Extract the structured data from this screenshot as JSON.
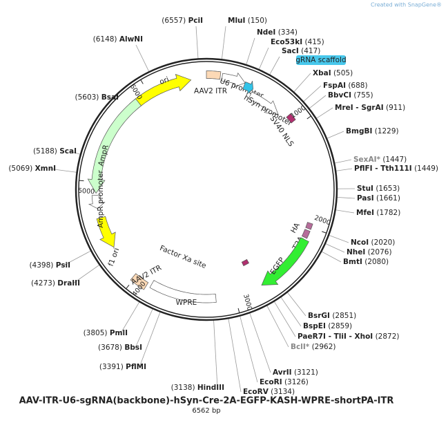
{
  "header": {
    "credit": "Created with SnapGene®"
  },
  "map": {
    "title": "AAV-ITR-U6-sgRNA(backbone)-hSyn-Cre-2A-EGFP-KASH-WPRE-shortPA-ITR",
    "length": "6562 bp",
    "ticks": [
      "1000",
      "2000",
      "3000",
      "4000",
      "5000",
      "6000"
    ],
    "features": [
      {
        "label": "ori"
      },
      {
        "label": "AAV2 ITR"
      },
      {
        "label": "U6 promoter"
      },
      {
        "label": "gRNA scaffold"
      },
      {
        "label": "hSyn promoter"
      },
      {
        "label": "SV40 NLS"
      },
      {
        "label": "HA"
      },
      {
        "label": "T2A"
      },
      {
        "label": "EGFP"
      },
      {
        "label": "WPRE"
      },
      {
        "label": "Factor Xa site"
      },
      {
        "label": "AAV2 ITR"
      },
      {
        "label": "f1 ori"
      },
      {
        "label": "AmpR"
      },
      {
        "label": "AmpR promoter"
      }
    ],
    "sites": [
      {
        "name": "PciI",
        "position": "(6557)"
      },
      {
        "name": "MluI",
        "position": "(150)"
      },
      {
        "name": "NdeI",
        "position": "(334)"
      },
      {
        "name": "Eco53kI",
        "position": "(415)"
      },
      {
        "name": "SacI",
        "position": "(417)"
      },
      {
        "name": "XbaI",
        "position": "(505)"
      },
      {
        "name": "FspAI",
        "position": "(688)"
      },
      {
        "name": "BbvCI",
        "position": "(755)"
      },
      {
        "name": "MreI - SgrAI",
        "position": "(911)"
      },
      {
        "name": "BmgBI",
        "position": "(1229)"
      },
      {
        "name": "SexAI*",
        "position": "(1447)"
      },
      {
        "name": "PflFI - Tth111I",
        "position": "(1449)"
      },
      {
        "name": "StuI",
        "position": "(1653)"
      },
      {
        "name": "PasI",
        "position": "(1661)"
      },
      {
        "name": "MfeI",
        "position": "(1782)"
      },
      {
        "name": "NcoI",
        "position": "(2020)"
      },
      {
        "name": "NheI",
        "position": "(2076)"
      },
      {
        "name": "BmtI",
        "position": "(2080)"
      },
      {
        "name": "BsrGI",
        "position": "(2851)"
      },
      {
        "name": "BspEI",
        "position": "(2859)"
      },
      {
        "name": "PaeR7I - TliI - XhoI",
        "position": "(2872)"
      },
      {
        "name": "BclI*",
        "position": "(2962)"
      },
      {
        "name": "AvrII",
        "position": "(3121)"
      },
      {
        "name": "EcoRI",
        "position": "(3126)"
      },
      {
        "name": "EcoRV",
        "position": "(3134)"
      },
      {
        "name": "HindIII",
        "position": "(3138)"
      },
      {
        "name": "PflMI",
        "position": "(3391)"
      },
      {
        "name": "BbsI",
        "position": "(3678)"
      },
      {
        "name": "PmlI",
        "position": "(3805)"
      },
      {
        "name": "DraIII",
        "position": "(4273)"
      },
      {
        "name": "PsiI",
        "position": "(4398)"
      },
      {
        "name": "XmnI",
        "position": "(5069)"
      },
      {
        "name": "ScaI",
        "position": "(5188)"
      },
      {
        "name": "BsaI",
        "position": "(5603)"
      },
      {
        "name": "AlwNI",
        "position": "(6148)"
      }
    ]
  }
}
